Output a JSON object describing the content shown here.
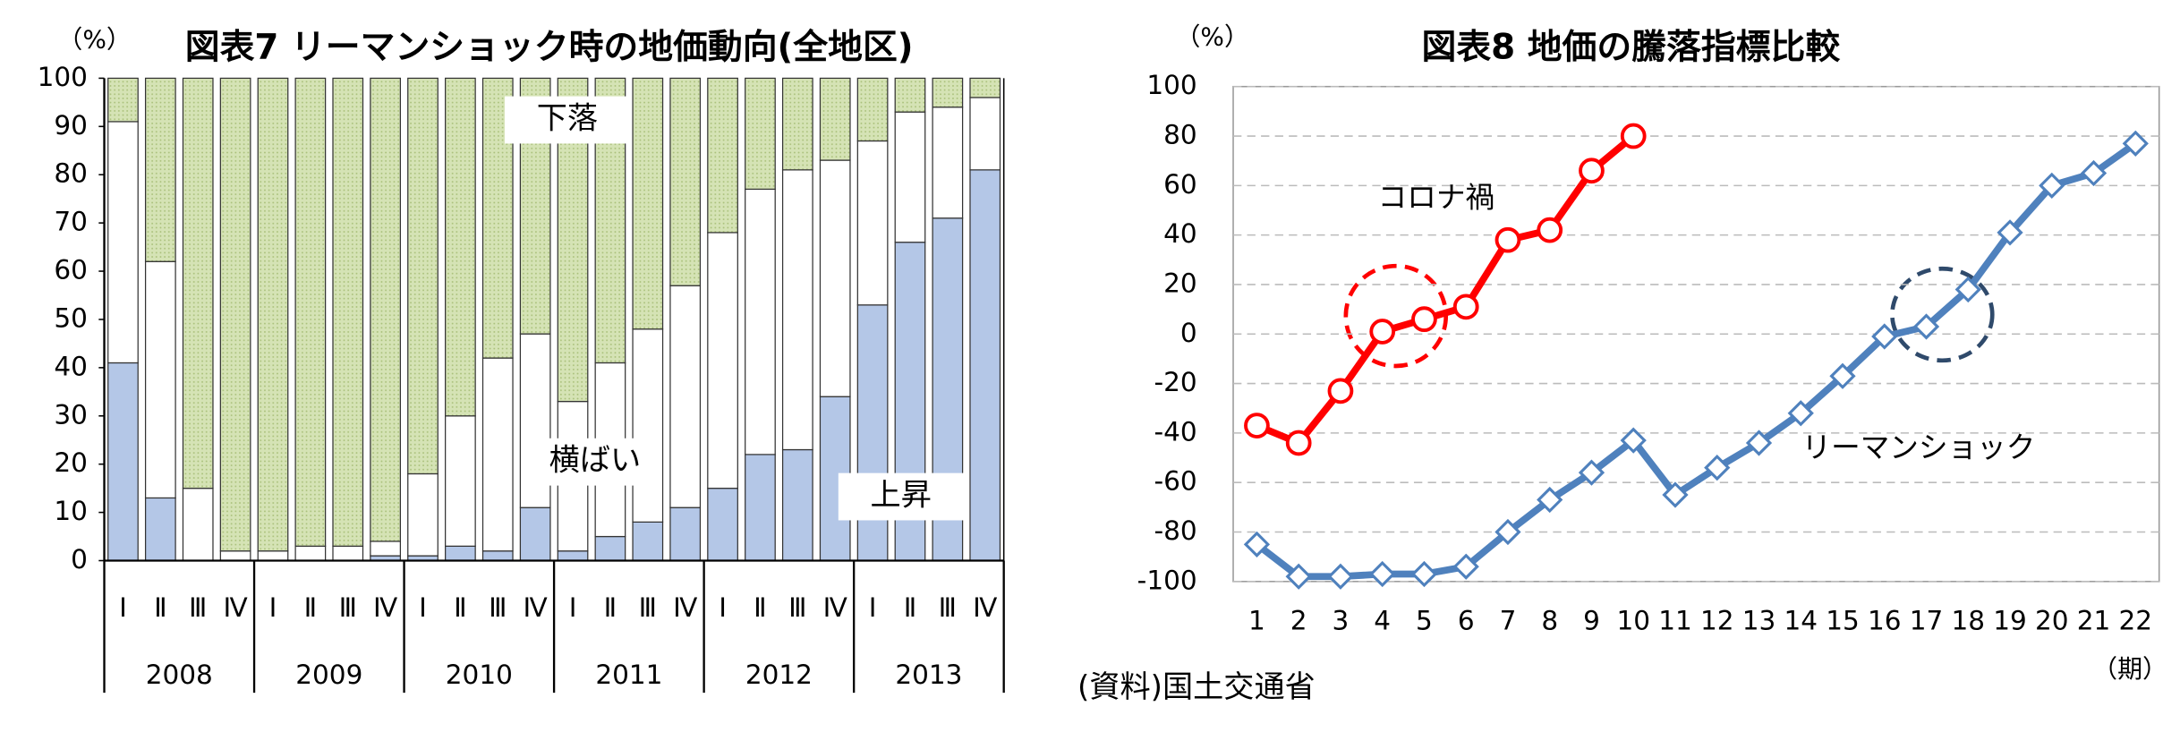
{
  "chart_data": [
    {
      "type": "bar",
      "stacked": true,
      "title": "図表7 リーマンショック時の地価動向(全地区)",
      "y_unit": "（%）",
      "categories": [
        "Ⅰ",
        "Ⅱ",
        "Ⅲ",
        "Ⅳ",
        "Ⅰ",
        "Ⅱ",
        "Ⅲ",
        "Ⅳ",
        "Ⅰ",
        "Ⅱ",
        "Ⅲ",
        "Ⅳ",
        "Ⅰ",
        "Ⅱ",
        "Ⅲ",
        "Ⅳ",
        "Ⅰ",
        "Ⅱ",
        "Ⅲ",
        "Ⅳ",
        "Ⅰ",
        "Ⅱ",
        "Ⅲ",
        "Ⅳ"
      ],
      "groups": [
        "2008",
        "2009",
        "2010",
        "2011",
        "2012",
        "2013"
      ],
      "series": [
        {
          "name": "上昇",
          "color": "#b4c7e7",
          "values": [
            41,
            13,
            0,
            0,
            0,
            0,
            0,
            1,
            1,
            3,
            2,
            11,
            2,
            5,
            8,
            11,
            15,
            22,
            23,
            34,
            53,
            66,
            71,
            81
          ]
        },
        {
          "name": "横ばい",
          "color": "#ffffff",
          "values": [
            50,
            49,
            15,
            2,
            2,
            3,
            3,
            3,
            17,
            27,
            40,
            36,
            31,
            36,
            40,
            46,
            53,
            55,
            58,
            49,
            34,
            27,
            23,
            15
          ]
        },
        {
          "name": "下落",
          "color": "#d5e3b5",
          "values": [
            9,
            38,
            85,
            98,
            98,
            97,
            97,
            96,
            82,
            70,
            58,
            53,
            67,
            59,
            52,
            43,
            32,
            23,
            19,
            17,
            13,
            7,
            6,
            4
          ]
        }
      ],
      "ylim": [
        0,
        100
      ],
      "yticks": [
        0,
        10,
        20,
        30,
        40,
        50,
        60,
        70,
        80,
        90,
        100
      ],
      "grid": false
    },
    {
      "type": "line",
      "title": "図表8 地価の騰落指標比較",
      "y_unit": "（%）",
      "x_unit": "（期）",
      "categories": [
        "1",
        "2",
        "3",
        "4",
        "5",
        "6",
        "7",
        "8",
        "9",
        "10",
        "11",
        "12",
        "13",
        "14",
        "15",
        "16",
        "17",
        "18",
        "19",
        "20",
        "21",
        "22"
      ],
      "series": [
        {
          "name": "コロナ禍",
          "color": "#ff0000",
          "marker": "circle",
          "values": [
            -37,
            -44,
            -23,
            1,
            6,
            11,
            38,
            42,
            66,
            80,
            null,
            null,
            null,
            null,
            null,
            null,
            null,
            null,
            null,
            null,
            null,
            null
          ]
        },
        {
          "name": "リーマンショック",
          "color": "#4f81bd",
          "marker": "diamond",
          "values": [
            -85,
            -98,
            -98,
            -97,
            -97,
            -94,
            -80,
            -67,
            -56,
            -43,
            -65,
            -54,
            -44,
            -32,
            -17,
            -1,
            3,
            18,
            41,
            60,
            65,
            77
          ]
        }
      ],
      "ylim": [
        -100,
        100
      ],
      "yticks": [
        -100,
        -80,
        -60,
        -40,
        -20,
        0,
        20,
        40,
        60,
        80,
        100
      ],
      "grid": true
    }
  ],
  "source": "(資料)国土交通省"
}
